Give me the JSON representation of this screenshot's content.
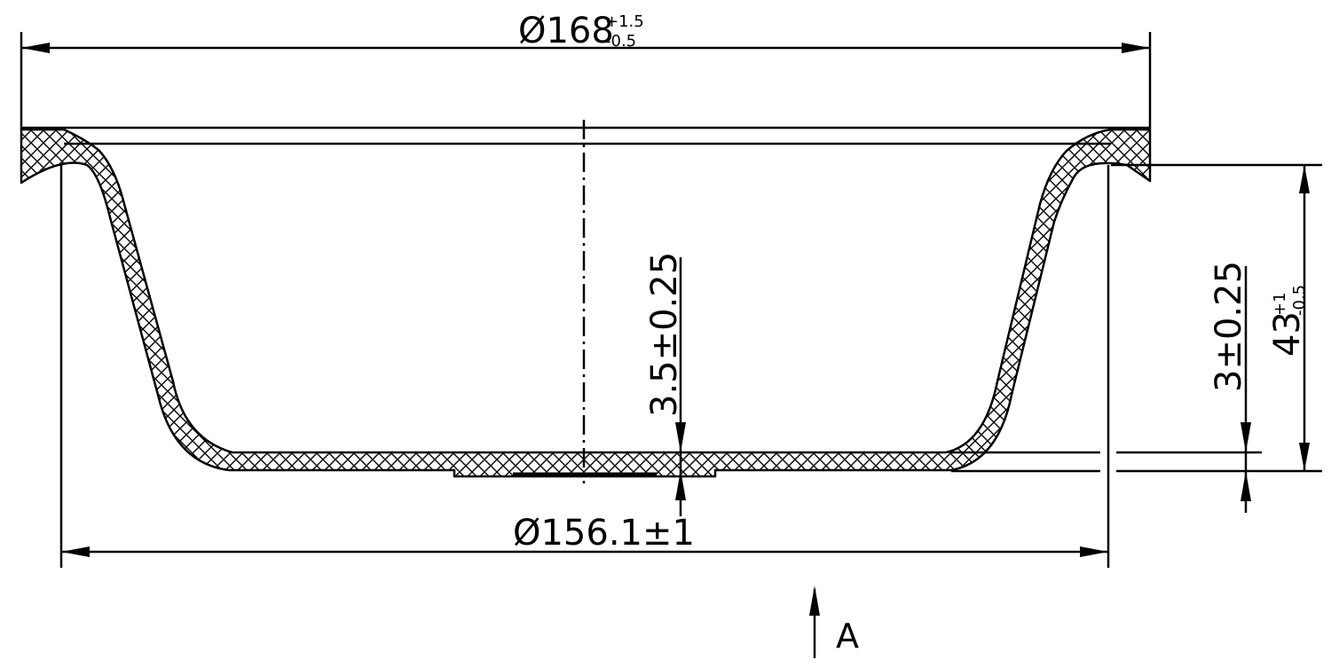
{
  "dimensions": {
    "outer_diameter": {
      "base": "Ø168",
      "upper": "+1.5",
      "lower": "-0.5"
    },
    "bottom_diameter": {
      "text": "Ø156.1±1"
    },
    "bottom_thickness": {
      "text": "3.5±0.25"
    },
    "wall_thickness": {
      "text": "3±0.25"
    },
    "height": {
      "base": "43",
      "upper": "+1",
      "lower": "-0.5"
    }
  },
  "view_arrow": {
    "label": "A"
  },
  "colors": {
    "line": "#000000",
    "background": "#ffffff"
  }
}
